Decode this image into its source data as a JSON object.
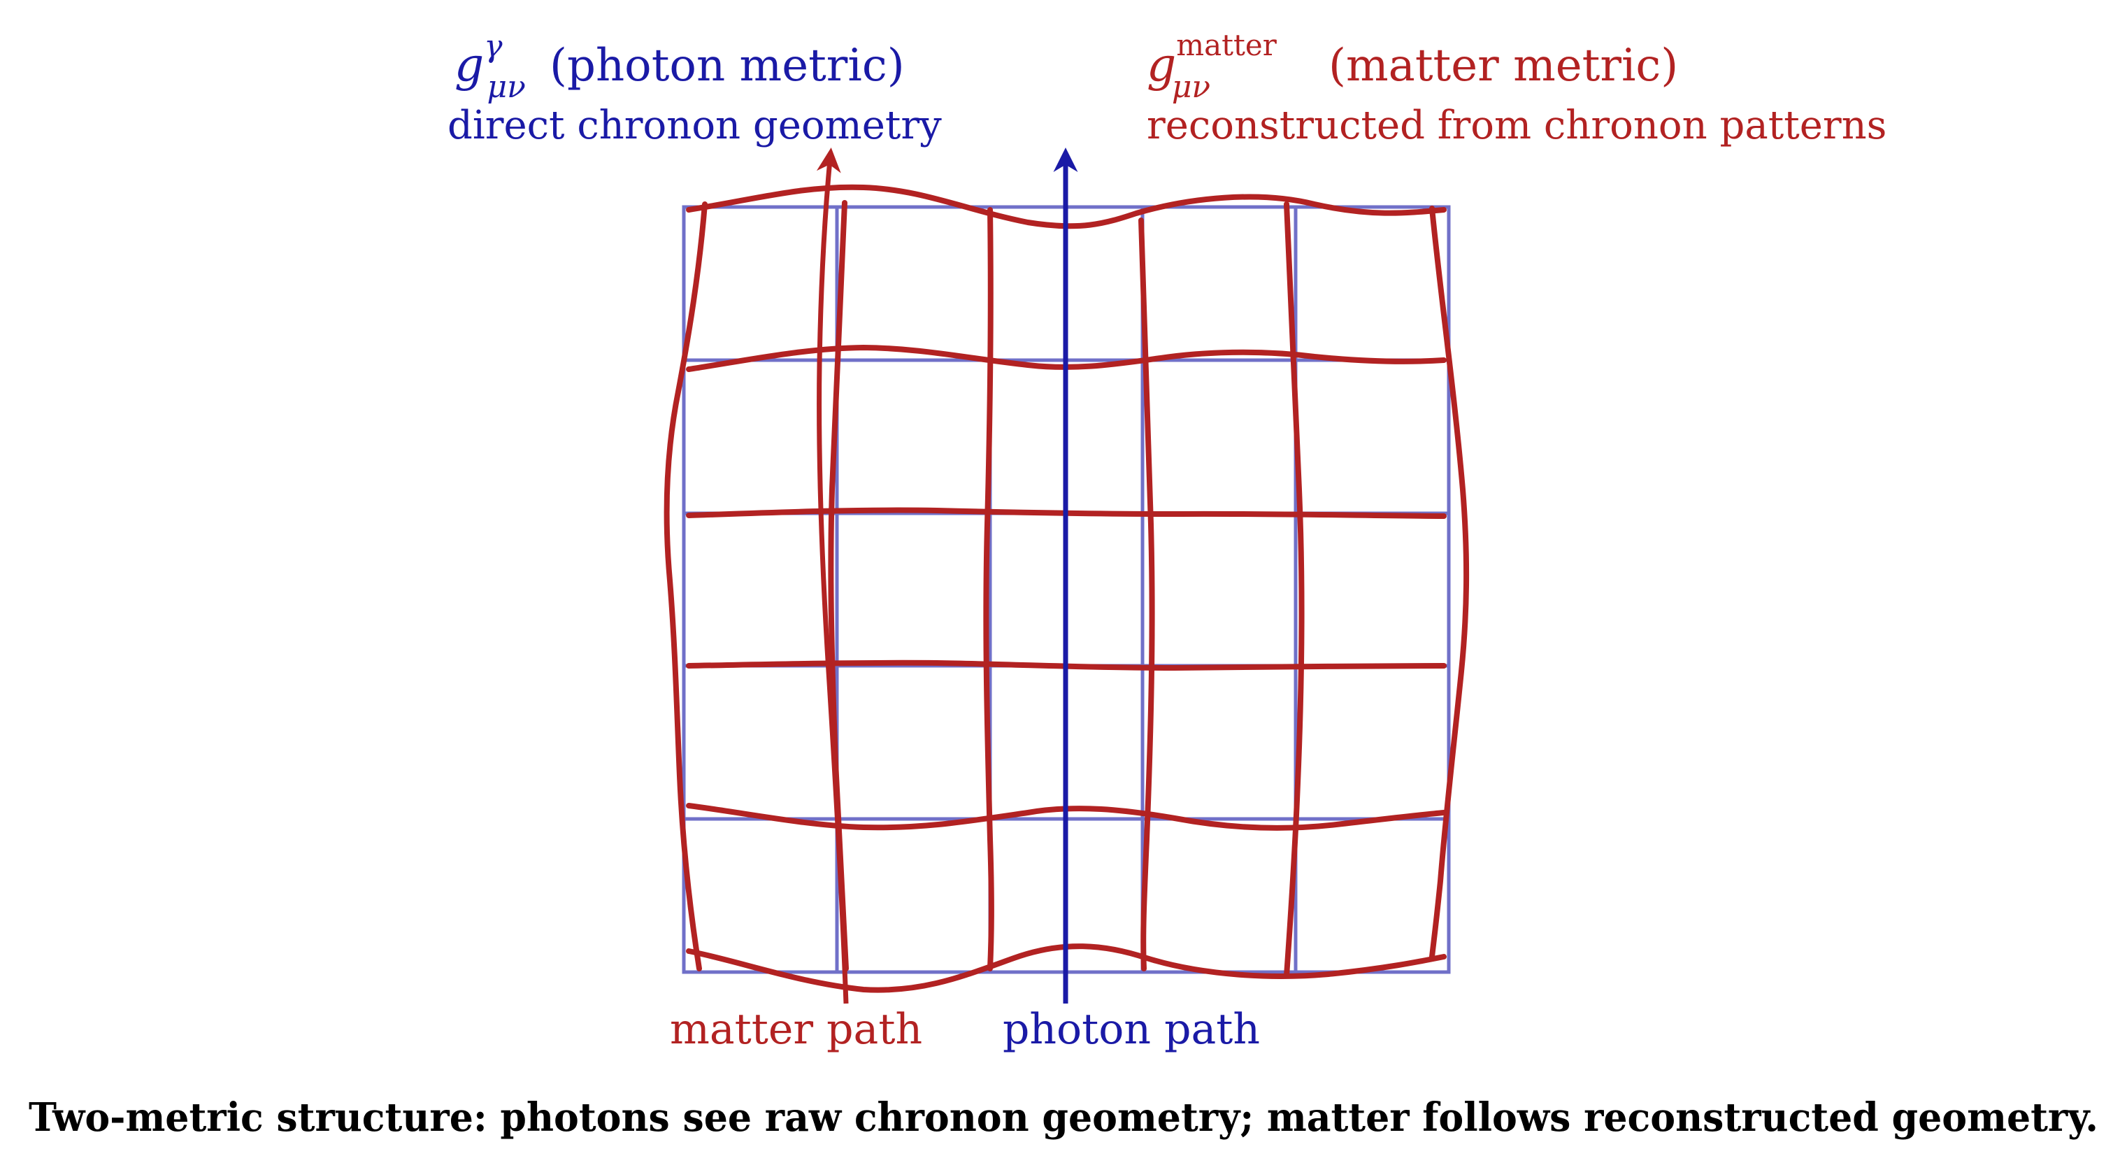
{
  "photon_metric": {
    "symbol_base": "g",
    "symbol_sup": "γ",
    "symbol_sub": "μν",
    "name": "(photon metric)",
    "subtitle": "direct chronon geometry"
  },
  "matter_metric": {
    "symbol_base": "g",
    "symbol_sup": "matter",
    "symbol_sub": "μν",
    "name": "(matter metric)",
    "subtitle": "reconstructed from chronon patterns"
  },
  "paths": {
    "matter_label": "matter path",
    "photon_label": "photon path"
  },
  "caption": "Two-metric structure: photons see raw chronon geometry; matter follows reconstructed geometry.",
  "colors": {
    "photon": "#1a1aa6",
    "photon_grid": "#7070c8",
    "matter": "#b22222",
    "caption": "#000000"
  }
}
